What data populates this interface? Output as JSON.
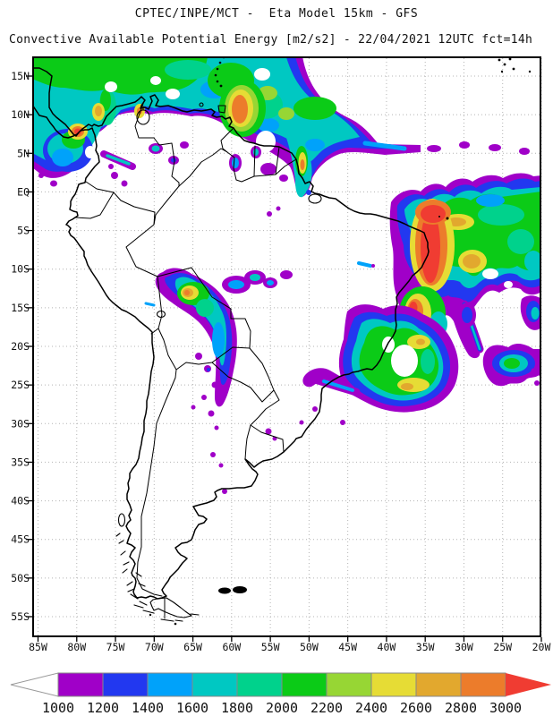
{
  "header": {
    "title": "CPTEC/INPE/MCT -  Eta Model 15km - GFS",
    "subtitle": "Convective Available Potential Energy [m2/s2] - 22/04/2021 12UTC fct=14h"
  },
  "map": {
    "lat_labels": [
      "15N",
      "10N",
      "5N",
      "EQ",
      "5S",
      "10S",
      "15S",
      "20S",
      "25S",
      "30S",
      "35S",
      "40S",
      "45S",
      "50S",
      "55S"
    ],
    "lon_labels": [
      "85W",
      "80W",
      "75W",
      "70W",
      "65W",
      "60W",
      "55W",
      "50W",
      "45W",
      "40W",
      "35W",
      "30W",
      "25W",
      "20W"
    ]
  },
  "colorbar": {
    "tick_labels": [
      "1000",
      "1200",
      "1400",
      "1600",
      "1800",
      "2000",
      "2200",
      "2400",
      "2600",
      "2800",
      "3000"
    ],
    "segment_colors": [
      "#A000C8",
      "#2238F0",
      "#00A2FA",
      "#00C8C2",
      "#00D28C",
      "#0BCB17",
      "#97D634",
      "#E6DC35",
      "#E2A82E",
      "#EC7C2B"
    ],
    "left_arrow_color": "#FFFFFF",
    "right_arrow_color": "#F03C32"
  },
  "palette": {
    "purple": "#A000C8",
    "blue": "#2238F0",
    "lightblue": "#00A2FA",
    "teal": "#00C8C2",
    "springgreen": "#00D28C",
    "green": "#0BCB17",
    "yellowgreen": "#97D634",
    "yellow": "#E6DC35",
    "goldenrod": "#E2A82E",
    "orange": "#EC7C2B",
    "red": "#F03C32",
    "white": "#FFFFFF"
  }
}
